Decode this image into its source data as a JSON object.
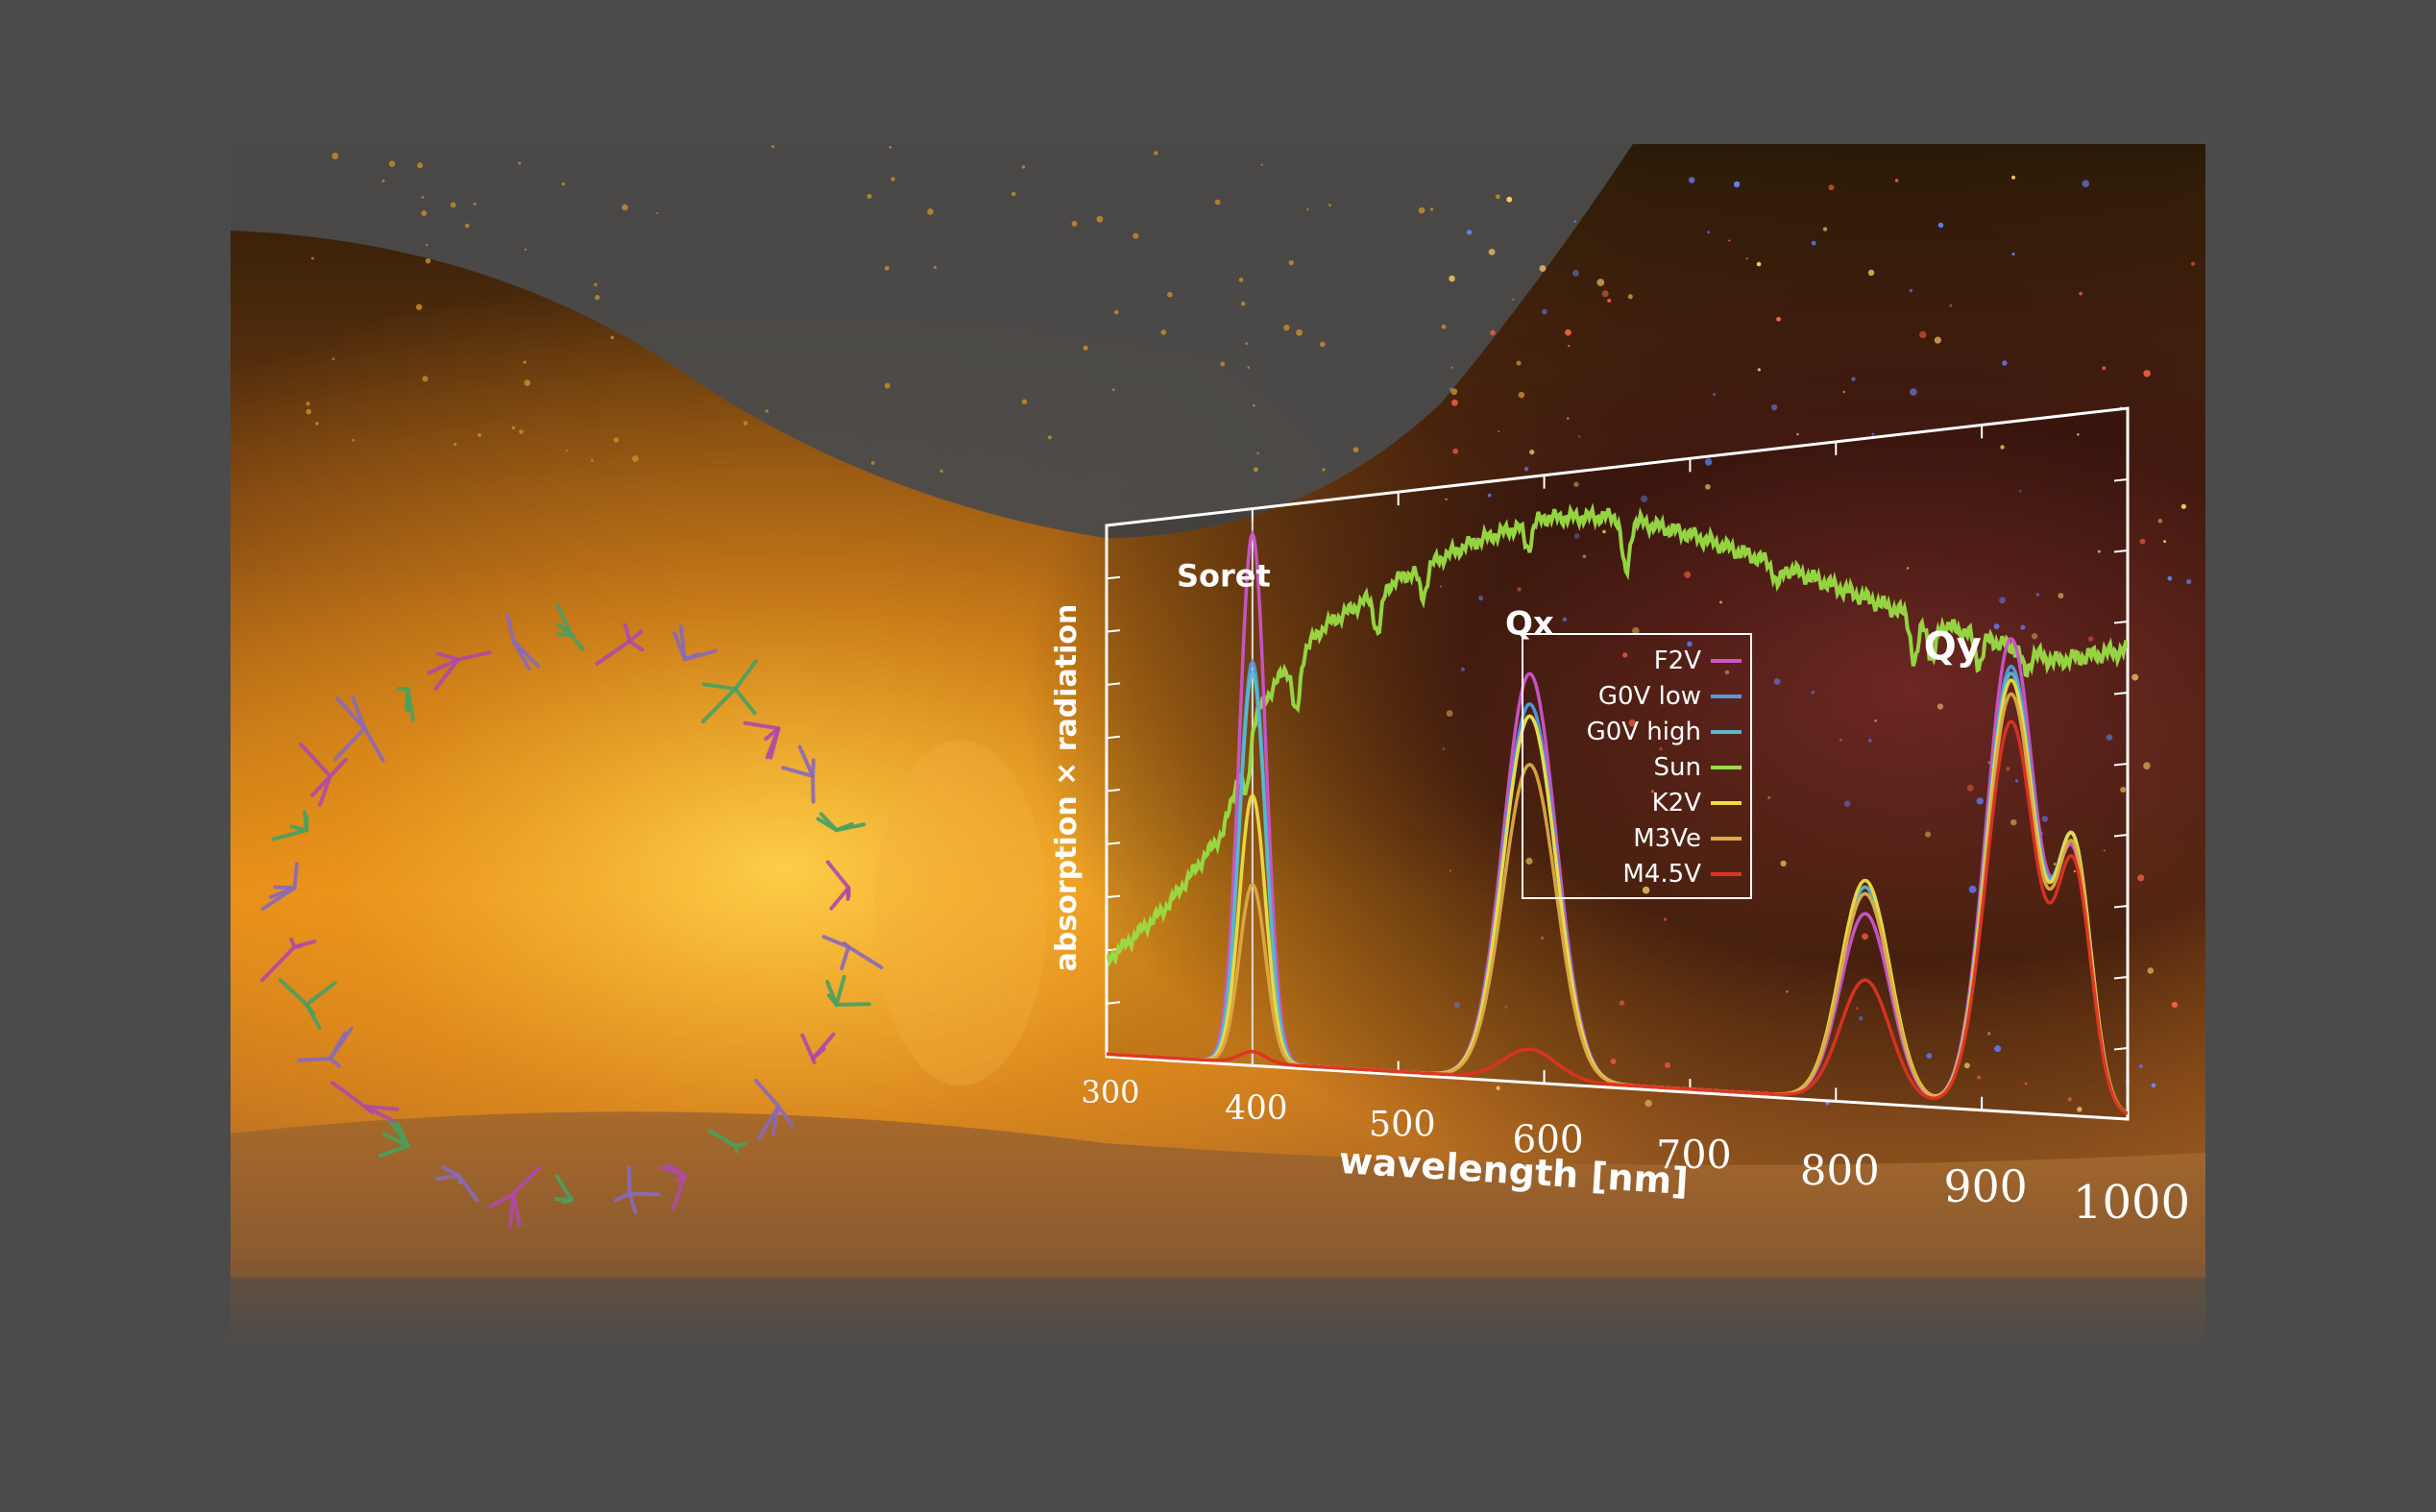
{
  "chart_data": {
    "type": "line",
    "xlabel": "wavelength [nm]",
    "ylabel": "absorption × radiation",
    "xlim": [
      300,
      1000
    ],
    "ylim": [
      0,
      1
    ],
    "xticks": [
      "300",
      "400",
      "500",
      "600",
      "700",
      "800",
      "900",
      "1000"
    ],
    "grid": false,
    "legend_position": "top-right",
    "annotations": [
      {
        "text": "Soret",
        "x": 400
      },
      {
        "text": "Qx",
        "x": 590
      },
      {
        "text": "Qy",
        "x": 880
      }
    ],
    "series": [
      {
        "name": "F2V",
        "color": "#cc55cc",
        "peaks": [
          [
            400,
            0.95,
            9
          ],
          [
            590,
            0.67,
            18
          ],
          [
            820,
            0.28,
            17
          ],
          [
            920,
            0.68,
            17
          ],
          [
            963,
            0.35,
            12
          ]
        ]
      },
      {
        "name": "G0V low",
        "color": "#5599dd",
        "peaks": [
          [
            400,
            0.72,
            9
          ],
          [
            590,
            0.62,
            18
          ],
          [
            820,
            0.31,
            17
          ],
          [
            920,
            0.64,
            17
          ],
          [
            963,
            0.37,
            12
          ]
        ]
      },
      {
        "name": "G0V high",
        "color": "#55bbcc",
        "peaks": [
          [
            400,
            0.7,
            9
          ],
          [
            590,
            0.6,
            18
          ],
          [
            820,
            0.32,
            17
          ],
          [
            920,
            0.63,
            17
          ],
          [
            963,
            0.37,
            12
          ]
        ]
      },
      {
        "name": "Sun",
        "color": "#99dd44",
        "continuum": [
          [
            300,
            0.18
          ],
          [
            340,
            0.28
          ],
          [
            380,
            0.42
          ],
          [
            400,
            0.62
          ],
          [
            420,
            0.7
          ],
          [
            450,
            0.78
          ],
          [
            500,
            0.85
          ],
          [
            550,
            0.9
          ],
          [
            600,
            0.93
          ],
          [
            650,
            0.92
          ],
          [
            700,
            0.88
          ],
          [
            750,
            0.83
          ],
          [
            800,
            0.78
          ],
          [
            850,
            0.73
          ],
          [
            900,
            0.69
          ],
          [
            950,
            0.65
          ],
          [
            1000,
            0.66
          ]
        ],
        "absorption_lines": [
          [
            396,
            0.09
          ],
          [
            430,
            0.1
          ],
          [
            486,
            0.07
          ],
          [
            517,
            0.05
          ],
          [
            589,
            0.04
          ],
          [
            656,
            0.09
          ],
          [
            760,
            0.03
          ],
          [
            854,
            0.07
          ],
          [
            866,
            0.06
          ],
          [
            898,
            0.04
          ],
          [
            930,
            0.03
          ]
        ]
      },
      {
        "name": "K2V",
        "color": "#eedd44",
        "peaks": [
          [
            400,
            0.48,
            9
          ],
          [
            590,
            0.6,
            18
          ],
          [
            820,
            0.33,
            17
          ],
          [
            920,
            0.62,
            17
          ],
          [
            963,
            0.37,
            12
          ]
        ]
      },
      {
        "name": "M3Ve",
        "color": "#ddaa44",
        "peaks": [
          [
            400,
            0.32,
            9
          ],
          [
            590,
            0.52,
            18
          ],
          [
            820,
            0.31,
            17
          ],
          [
            920,
            0.6,
            17
          ],
          [
            963,
            0.36,
            12
          ]
        ]
      },
      {
        "name": "M4.5V",
        "color": "#dd3322",
        "peaks": [
          [
            400,
            0.02,
            9
          ],
          [
            590,
            0.05,
            18
          ],
          [
            820,
            0.18,
            17
          ],
          [
            920,
            0.56,
            17
          ],
          [
            963,
            0.34,
            12
          ]
        ]
      }
    ]
  }
}
